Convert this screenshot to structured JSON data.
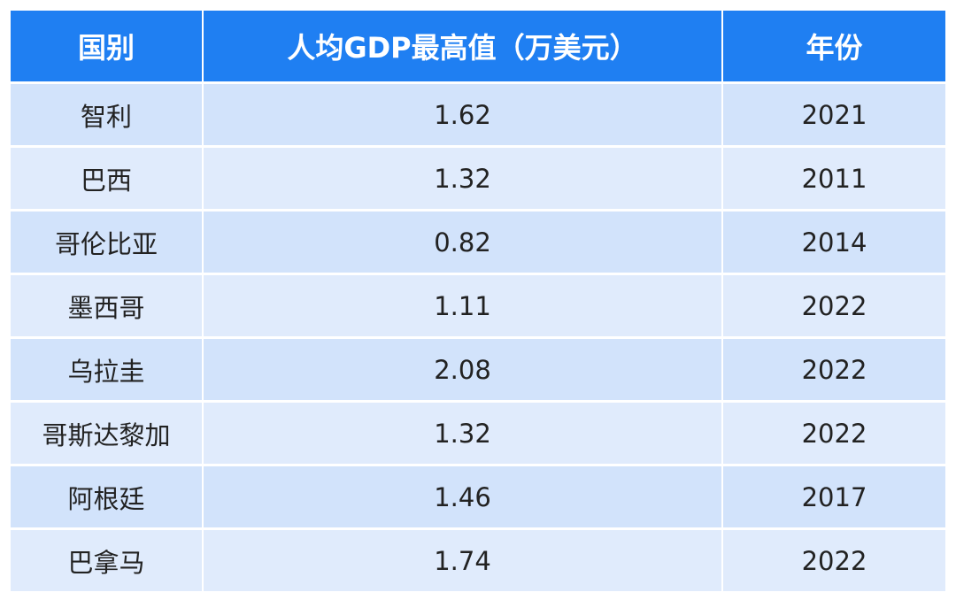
{
  "table": {
    "header": [
      "国别",
      "人均GDP最高值（万美元）",
      "年份"
    ],
    "rows": [
      [
        "智利",
        "1.62",
        "2021"
      ],
      [
        "巴西",
        "1.32",
        "2011"
      ],
      [
        "哥伦比亚",
        "0.82",
        "2014"
      ],
      [
        "墨西哥",
        "1.11",
        "2022"
      ],
      [
        "乌拉圭",
        "2.08",
        "2022"
      ],
      [
        "哥斯达黎加",
        "1.32",
        "2022"
      ],
      [
        "阿根廷",
        "1.46",
        "2017"
      ],
      [
        "巴拿马",
        "1.74",
        "2022"
      ]
    ]
  }
}
